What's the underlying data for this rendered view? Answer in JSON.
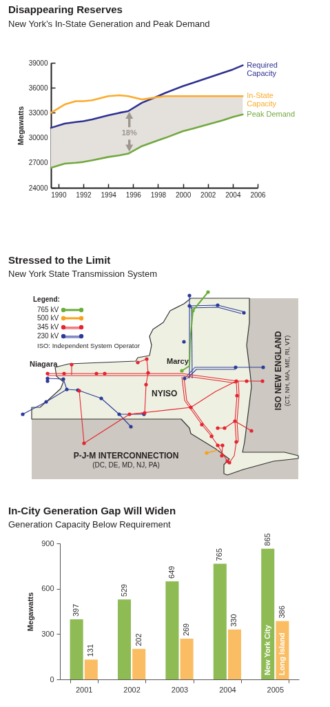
{
  "chart_data": [
    {
      "type": "line",
      "title": "Disappearing Reserves",
      "subtitle": "New York’s In-State Generation and Peak Demand",
      "ylabel": "Megawatts",
      "x": [
        1989.4,
        1990.5,
        1991.4,
        1992,
        1992.7,
        1994,
        1994.9,
        1995.6,
        1996.7,
        1998,
        1998.6,
        2000,
        2000.8,
        2002,
        2003.2,
        2004,
        2004.8
      ],
      "series": [
        {
          "name": "Required Capacity",
          "color": "#2e3192",
          "values": [
            31200,
            31700,
            31900,
            32000,
            32200,
            32700,
            33000,
            33200,
            34200,
            35000,
            35400,
            36200,
            36600,
            37200,
            37800,
            38200,
            38700
          ]
        },
        {
          "name": "In-State Capacity",
          "color": "#fbab2b",
          "values": [
            33000,
            34000,
            34400,
            34400,
            34500,
            35000,
            35100,
            35000,
            34600,
            34900,
            35000,
            35000,
            35000,
            35000,
            35000,
            35000,
            35000
          ]
        },
        {
          "name": "Peak Demand",
          "color": "#72a83f",
          "values": [
            26400,
            26900,
            27000,
            27100,
            27300,
            27700,
            27900,
            28100,
            29000,
            29700,
            30000,
            30800,
            31100,
            31600,
            32100,
            32500,
            32800
          ],
          "lower": [
            26400,
            26900,
            27000,
            27100,
            27300,
            27700,
            27900,
            28100,
            29000,
            29700,
            30000,
            30800,
            31100,
            31600,
            32100,
            32500,
            32800
          ],
          "upper": [
            31200,
            31700,
            31900,
            32000,
            32200,
            32700,
            33000,
            33200,
            34200,
            34900,
            35000,
            35000,
            35000,
            35000,
            35000,
            35000,
            35000
          ]
        }
      ],
      "xlim": [
        1989.4,
        2006
      ],
      "xticks": [
        1990,
        1992,
        1994,
        1996,
        1998,
        2000,
        2002,
        2004,
        2006
      ],
      "ylim": [
        24000,
        39000
      ],
      "yticks": [
        24000,
        27000,
        30000,
        33000,
        36000,
        39000
      ],
      "annotations": [
        "18%"
      ]
    },
    {
      "type": "other",
      "title": "Stressed to the Limit",
      "subtitle": "New York State Transmission System",
      "annotations": [
        "Legend:",
        "765 kV",
        "500 kV",
        "345 kV",
        "230 kV",
        "ISO: Independent System Operator",
        "Niagara",
        "Marcy",
        "NYISO",
        "ISO NEW ENGLAND",
        "(CT, NH, MA, ME, RI, VT)",
        "P-J-M INTERCONNECTION",
        "(DC, DE, MD, NJ, PA)"
      ]
    },
    {
      "type": "bar",
      "title": "In-City Generation Gap Will Widen",
      "subtitle": "Generation Capacity Below Requirement",
      "ylabel": "Megawatts",
      "categories": [
        "2001",
        "2002",
        "2003",
        "2004",
        "2005"
      ],
      "series": [
        {
          "name": "New York City",
          "color": "#8fbb55",
          "values": [
            397,
            529,
            649,
            765,
            865
          ]
        },
        {
          "name": "Long Island",
          "color": "#fbbd63",
          "values": [
            131,
            202,
            269,
            330,
            386
          ]
        }
      ],
      "ylim": [
        0,
        900
      ],
      "yticks": [
        0,
        300,
        600,
        900
      ],
      "data_labels": true
    }
  ]
}
